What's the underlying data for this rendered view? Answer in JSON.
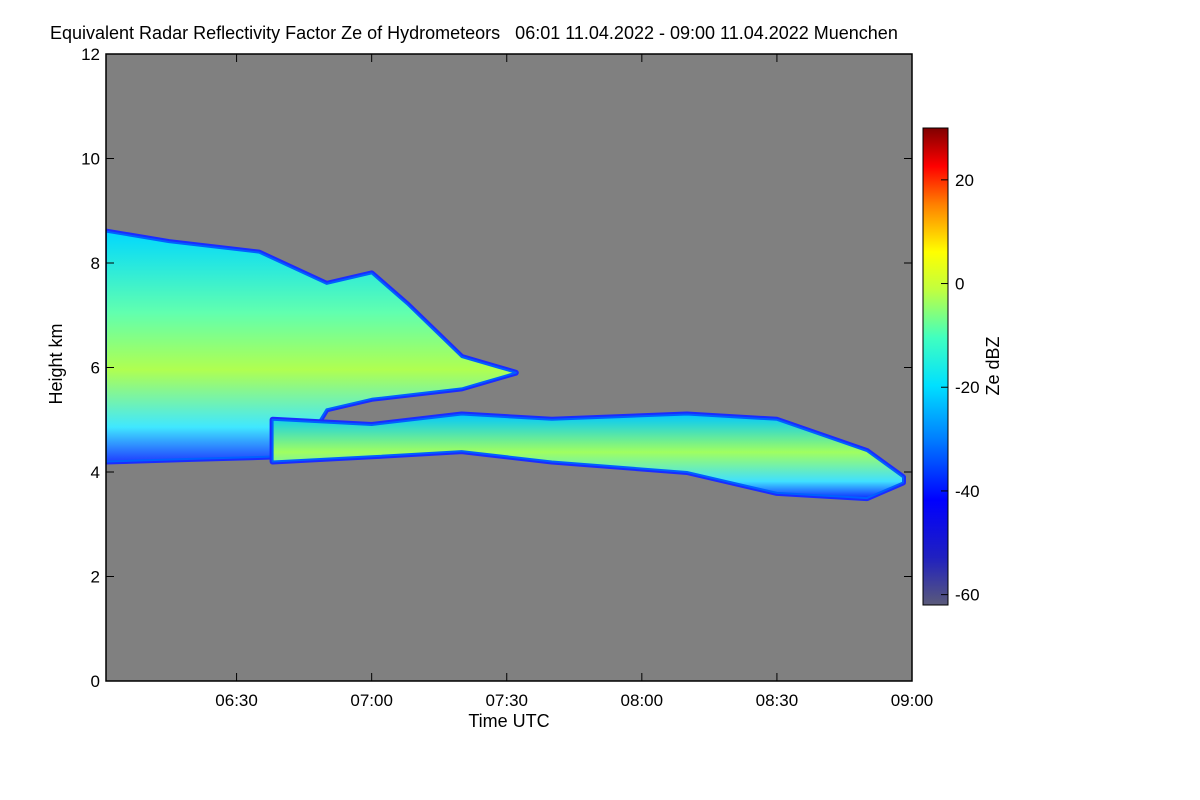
{
  "chart_data": {
    "type": "heatmap",
    "title": "Equivalent Radar Reflectivity Factor Ze of Hydrometeors   06:01 11.04.2022 - 09:00 11.04.2022 Muenchen",
    "xlabel": "Time UTC",
    "ylabel": "Height km",
    "colorbar_label": "Ze dBZ",
    "x_ticks": [
      "06:30",
      "07:00",
      "07:30",
      "08:00",
      "08:30",
      "09:00"
    ],
    "x_tick_minutes": [
      390,
      420,
      450,
      480,
      510,
      540
    ],
    "xlim_minutes": [
      361,
      540
    ],
    "y_ticks": [
      0,
      2,
      4,
      6,
      8,
      10,
      12
    ],
    "ylim": [
      0,
      12
    ],
    "colorbar_ticks": [
      20,
      0,
      -20,
      -40,
      -60
    ],
    "colorbar_range": [
      -62,
      30
    ],
    "background_color": "#808080",
    "colormap": [
      "#5a5a7a",
      "#2020c0",
      "#0000ff",
      "#0080ff",
      "#00e0ff",
      "#40ffc0",
      "#c0ff40",
      "#ffff00",
      "#ff8000",
      "#ff0000",
      "#800000"
    ],
    "echoes": [
      {
        "name": "upper cloud",
        "top_km": [
          [
            361,
            8.6
          ],
          [
            375,
            8.4
          ],
          [
            395,
            8.2
          ],
          [
            410,
            7.6
          ],
          [
            420,
            7.8
          ],
          [
            428,
            7.2
          ],
          [
            440,
            6.2
          ],
          [
            448,
            6.0
          ],
          [
            452,
            5.9
          ]
        ],
        "base_km": [
          [
            361,
            4.2
          ],
          [
            380,
            4.25
          ],
          [
            400,
            4.3
          ],
          [
            405,
            4.5
          ],
          [
            410,
            5.2
          ],
          [
            420,
            5.4
          ],
          [
            440,
            5.6
          ],
          [
            448,
            5.8
          ]
        ],
        "core_dbz": -12
      },
      {
        "name": "lower cloud band",
        "top_km": [
          [
            398,
            5.0
          ],
          [
            420,
            4.9
          ],
          [
            440,
            5.1
          ],
          [
            460,
            5.0
          ],
          [
            490,
            5.1
          ],
          [
            510,
            5.0
          ],
          [
            530,
            4.4
          ],
          [
            538,
            3.9
          ]
        ],
        "base_km": [
          [
            398,
            4.2
          ],
          [
            420,
            4.3
          ],
          [
            440,
            4.4
          ],
          [
            460,
            4.2
          ],
          [
            490,
            4.0
          ],
          [
            510,
            3.6
          ],
          [
            530,
            3.5
          ],
          [
            538,
            3.8
          ]
        ],
        "core_dbz": -15
      }
    ]
  }
}
